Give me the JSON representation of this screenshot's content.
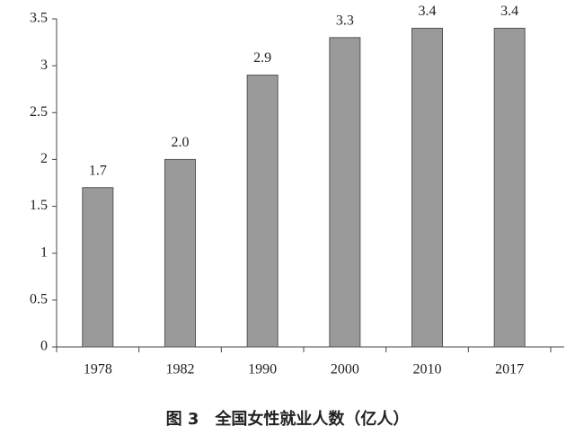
{
  "chart_data": {
    "type": "bar",
    "title": "图 3　全国女性就业人数（亿人）",
    "categories": [
      "1978",
      "1982",
      "1990",
      "2000",
      "2010",
      "2017"
    ],
    "values": [
      1.7,
      2.0,
      2.9,
      3.3,
      3.4,
      3.4
    ],
    "value_labels": [
      "1.7",
      "2.0",
      "2.9",
      "3.3",
      "3.4",
      "3.4"
    ],
    "color": "#9a9a9a",
    "ylim": [
      0,
      3.5
    ],
    "yticks": [
      0,
      0.5,
      1,
      1.5,
      2,
      2.5,
      3,
      3.5
    ]
  }
}
